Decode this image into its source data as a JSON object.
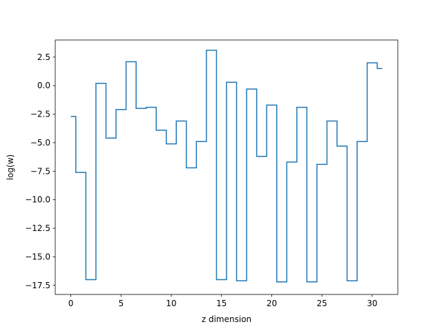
{
  "chart_data": {
    "type": "line",
    "drawstyle": "steps-mid",
    "title": "",
    "xlabel": "z dimension",
    "ylabel": "log(w)",
    "xlim": [
      -1.55,
      32.55
    ],
    "ylim": [
      -18.3,
      4.0
    ],
    "xticks": [
      0,
      5,
      10,
      15,
      20,
      25,
      30
    ],
    "xtick_labels": [
      "0",
      "5",
      "10",
      "15",
      "20",
      "25",
      "30"
    ],
    "yticks": [
      2.5,
      0.0,
      -2.5,
      -5.0,
      -7.5,
      -10.0,
      -12.5,
      -15.0,
      -17.5
    ],
    "ytick_labels": [
      "2.5",
      "0.0",
      "−2.5",
      "−5.0",
      "−7.5",
      "−10.0",
      "−12.5",
      "−15.0",
      "−17.5"
    ],
    "grid": false,
    "legend": "none",
    "color": "#1f77b4",
    "x": [
      0,
      1,
      2,
      3,
      4,
      5,
      6,
      7,
      8,
      9,
      10,
      11,
      12,
      13,
      14,
      15,
      16,
      17,
      18,
      19,
      20,
      21,
      22,
      23,
      24,
      25,
      26,
      27,
      28,
      29,
      30,
      31
    ],
    "y": [
      -2.7,
      -7.6,
      -17.0,
      0.2,
      -4.6,
      -2.1,
      2.1,
      -2.0,
      -1.9,
      -3.9,
      -5.1,
      -3.1,
      -7.2,
      -4.9,
      3.1,
      -17.0,
      0.3,
      -17.1,
      -0.3,
      -6.2,
      -1.7,
      -17.2,
      -6.7,
      -1.9,
      -17.2,
      -6.9,
      -3.1,
      -5.3,
      -17.1,
      -4.9,
      2.0,
      1.5
    ]
  }
}
